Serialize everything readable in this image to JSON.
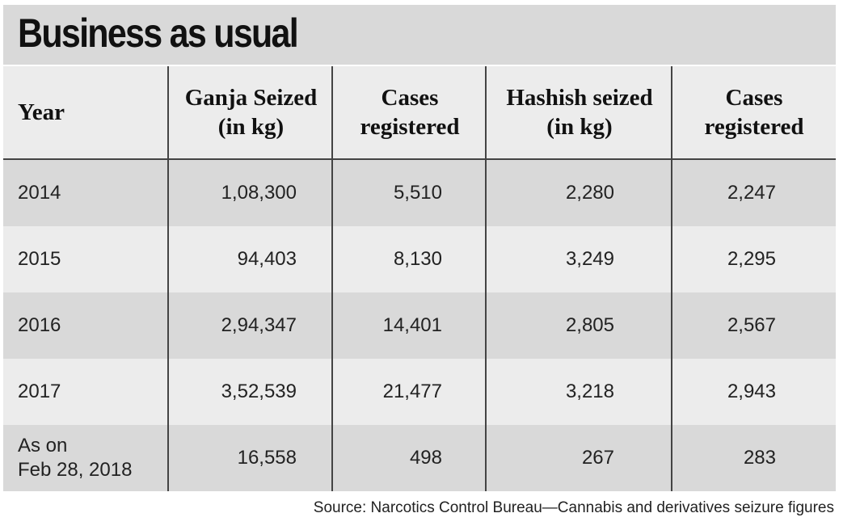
{
  "title": "Business as usual",
  "table": {
    "headers": [
      "Year",
      "Ganja Seized\n(in kg)",
      "Cases\nregistered",
      "Hashish seized\n(in kg)",
      "Cases\nregistered"
    ],
    "rows": [
      [
        "2014",
        "1,08,300",
        "5,510",
        "2,280",
        "2,247"
      ],
      [
        "2015",
        "94,403",
        "8,130",
        "3,249",
        "2,295"
      ],
      [
        "2016",
        "2,94,347",
        "14,401",
        "2,805",
        "2,567"
      ],
      [
        "2017",
        "3,52,539",
        "21,477",
        "3,218",
        "2,943"
      ],
      [
        "As on\nFeb 28, 2018",
        "16,558",
        "498",
        "267",
        "283"
      ]
    ]
  },
  "source": "Source: Narcotics Control Bureau—Cannabis and derivatives seizure figures"
}
